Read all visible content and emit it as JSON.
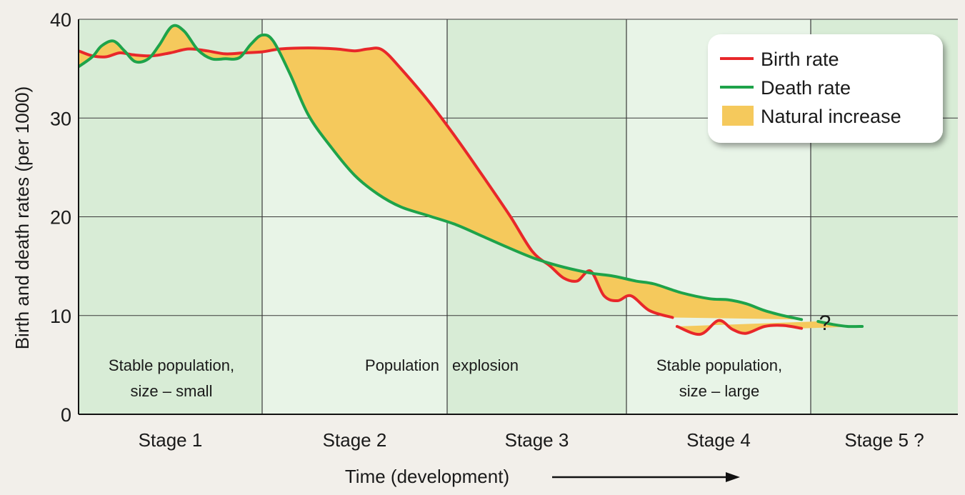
{
  "chart_data": {
    "type": "line",
    "title": "",
    "ylabel": "Birth and death rates (per 1000)",
    "xlabel": "Time (development)",
    "ylim": [
      0,
      40
    ],
    "yticks": [
      0,
      10,
      20,
      30,
      40
    ],
    "grid": true,
    "legend_position": "top-right",
    "legend": [
      {
        "label": "Birth rate",
        "type": "line",
        "color": "#e8272a"
      },
      {
        "label": "Death rate",
        "type": "line",
        "color": "#1ea34a"
      },
      {
        "label": "Natural increase",
        "type": "area",
        "color": "#f5c95c"
      }
    ],
    "stages": [
      {
        "label": "Stage 1",
        "note_lines": [
          "Stable population,",
          "size – small"
        ],
        "background": "#d8ecd6"
      },
      {
        "label": "Stage 2",
        "note_lines": [
          "Population"
        ],
        "background": "#e8f4e7"
      },
      {
        "label": "Stage 3",
        "note_lines": [
          "explosion"
        ],
        "background": "#d8ecd6"
      },
      {
        "label": "Stage 4",
        "note_lines": [
          "Stable population,",
          "size – large"
        ],
        "background": "#e8f4e7"
      },
      {
        "label": "Stage 5 ?",
        "note_lines": [],
        "background": "#d8ecd6"
      }
    ],
    "x_unit": "stage position (0–5)",
    "series": [
      {
        "name": "Birth rate",
        "color": "#e8272a",
        "segments": [
          [
            [
              0,
              36.8
            ],
            [
              0.15,
              36.3
            ],
            [
              0.3,
              36.2
            ],
            [
              0.45,
              36.6
            ],
            [
              0.6,
              36.4
            ],
            [
              0.8,
              36.3
            ],
            [
              1.0,
              36.6
            ],
            [
              1.2,
              37.0
            ],
            [
              1.4,
              36.8
            ],
            [
              1.6,
              36.5
            ],
            [
              1.8,
              36.6
            ],
            [
              2.0,
              36.7
            ],
            [
              2.2,
              37.0
            ],
            [
              2.5,
              37.1
            ],
            [
              2.8,
              37.0
            ],
            [
              3.0,
              36.8
            ],
            [
              3.15,
              37.0
            ],
            [
              3.3,
              36.9
            ],
            [
              3.5,
              35.0
            ],
            [
              3.8,
              31.7
            ],
            [
              4.1,
              28.0
            ],
            [
              4.4,
              24.1
            ],
            [
              4.7,
              20.1
            ],
            [
              4.95,
              16.5
            ],
            [
              5.15,
              15.0
            ],
            [
              5.3,
              13.8
            ],
            [
              5.45,
              13.5
            ],
            [
              5.6,
              14.5
            ],
            [
              5.75,
              12.0
            ],
            [
              5.9,
              11.5
            ],
            [
              6.05,
              12.0
            ],
            [
              6.25,
              10.5
            ],
            [
              6.5,
              9.8
            ]
          ],
          [
            [
              6.55,
              8.9
            ],
            [
              6.8,
              8.1
            ],
            [
              7.0,
              9.5
            ],
            [
              7.15,
              8.6
            ],
            [
              7.3,
              8.2
            ],
            [
              7.5,
              8.9
            ],
            [
              7.7,
              9.0
            ],
            [
              7.9,
              8.7
            ]
          ]
        ]
      },
      {
        "name": "Death rate",
        "color": "#1ea34a",
        "segments": [
          [
            [
              0,
              35.2
            ],
            [
              0.15,
              36.2
            ],
            [
              0.25,
              37.3
            ],
            [
              0.38,
              37.8
            ],
            [
              0.5,
              36.8
            ],
            [
              0.62,
              35.7
            ],
            [
              0.76,
              36.0
            ],
            [
              0.88,
              37.4
            ],
            [
              1.02,
              39.3
            ],
            [
              1.15,
              38.8
            ],
            [
              1.3,
              36.9
            ],
            [
              1.45,
              36.0
            ],
            [
              1.6,
              36.0
            ],
            [
              1.75,
              36.1
            ],
            [
              1.88,
              37.5
            ],
            [
              2.0,
              38.4
            ],
            [
              2.12,
              37.8
            ],
            [
              2.3,
              34.5
            ],
            [
              2.5,
              30.3
            ],
            [
              2.75,
              27.0
            ],
            [
              3.0,
              24.2
            ],
            [
              3.25,
              22.3
            ],
            [
              3.5,
              21.0
            ],
            [
              3.8,
              20.1
            ],
            [
              4.1,
              19.2
            ],
            [
              4.4,
              18.0
            ],
            [
              4.7,
              16.8
            ],
            [
              5.0,
              15.7
            ],
            [
              5.3,
              14.9
            ],
            [
              5.6,
              14.3
            ],
            [
              5.85,
              14.0
            ],
            [
              6.1,
              13.5
            ],
            [
              6.3,
              13.2
            ],
            [
              6.6,
              12.3
            ],
            [
              6.9,
              11.7
            ],
            [
              7.1,
              11.6
            ],
            [
              7.3,
              11.2
            ],
            [
              7.5,
              10.5
            ],
            [
              7.7,
              10.0
            ],
            [
              7.9,
              9.6
            ]
          ],
          [
            [
              8.1,
              9.4
            ],
            [
              8.3,
              9.1
            ],
            [
              8.5,
              8.9
            ],
            [
              8.7,
              8.9
            ]
          ]
        ]
      }
    ],
    "annotations": [
      {
        "text": "?"
      }
    ]
  }
}
